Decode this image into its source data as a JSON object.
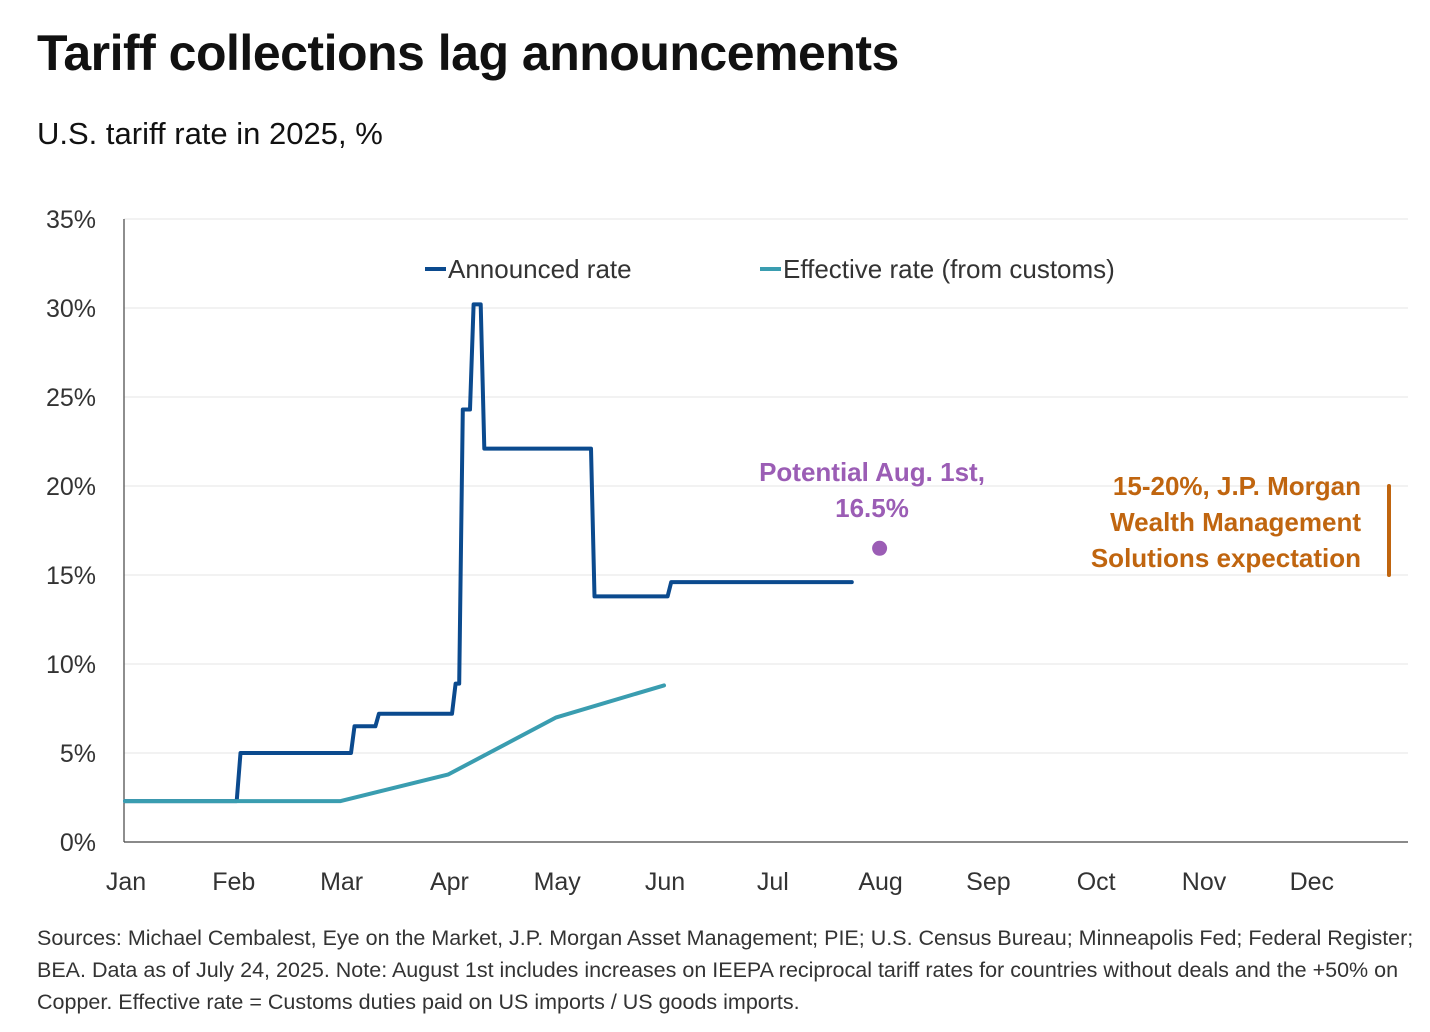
{
  "chart_data": {
    "type": "line",
    "title": "Tariff collections lag announcements",
    "subtitle": "U.S. tariff rate in 2025, %",
    "xlabel": "",
    "ylabel": "",
    "x_tick_labels": [
      "Jan",
      "Feb",
      "Mar",
      "Apr",
      "May",
      "Jun",
      "Jul",
      "Aug",
      "Sep",
      "Oct",
      "Nov",
      "Dec"
    ],
    "y_tick_labels": [
      "0%",
      "5%",
      "10%",
      "15%",
      "20%",
      "25%",
      "30%",
      "35%"
    ],
    "ylim": [
      0,
      35
    ],
    "xlim": [
      "2025-01-01",
      "2025-12-31"
    ],
    "grid": "horizontal",
    "legend_position": "top",
    "series": [
      {
        "name": "Announced rate",
        "color": "#0B4A8E",
        "step": true,
        "points": [
          [
            "2025-01-01",
            2.3
          ],
          [
            "2025-02-02",
            2.3
          ],
          [
            "2025-02-03",
            5.0
          ],
          [
            "2025-03-04",
            5.0
          ],
          [
            "2025-03-05",
            6.5
          ],
          [
            "2025-03-11",
            6.5
          ],
          [
            "2025-03-12",
            7.2
          ],
          [
            "2025-04-02",
            7.2
          ],
          [
            "2025-04-03",
            8.9
          ],
          [
            "2025-04-04",
            8.9
          ],
          [
            "2025-04-05",
            24.3
          ],
          [
            "2025-04-07",
            24.3
          ],
          [
            "2025-04-08",
            30.2
          ],
          [
            "2025-04-10",
            30.2
          ],
          [
            "2025-04-11",
            22.1
          ],
          [
            "2025-05-11",
            22.1
          ],
          [
            "2025-05-12",
            13.8
          ],
          [
            "2025-06-02",
            13.8
          ],
          [
            "2025-06-03",
            14.6
          ],
          [
            "2025-07-24",
            14.6
          ]
        ]
      },
      {
        "name": "Effective rate (from customs)",
        "color": "#3A9DB0",
        "step": false,
        "points": [
          [
            "2025-01-01",
            2.3
          ],
          [
            "2025-03-01",
            2.3
          ],
          [
            "2025-04-01",
            3.8
          ],
          [
            "2025-05-01",
            7.0
          ],
          [
            "2025-06-01",
            8.8
          ]
        ]
      }
    ],
    "annotations": [
      {
        "label_lines": [
          "Potential Aug. 1st,",
          "16.5%"
        ],
        "date": "2025-08-01",
        "value": 16.5,
        "color": "#9B5DB5",
        "mark": "dot"
      },
      {
        "label_lines": [
          "15-20%, J.P. Morgan",
          "Wealth Management",
          "Solutions expectation"
        ],
        "range": [
          15,
          20
        ],
        "color": "#C0650F",
        "mark": "bar"
      }
    ]
  },
  "footnote": "Sources: Michael Cembalest, Eye on the Market, J.P. Morgan Asset Management; PIE; U.S. Census Bureau; Minneapolis Fed; Federal Register; BEA. Data as of July 24, 2025. Note: August 1st includes increases on IEEPA reciprocal tariff rates for countries without deals and the +50% on Copper. Effective rate = Customs duties paid on US imports / US goods imports."
}
